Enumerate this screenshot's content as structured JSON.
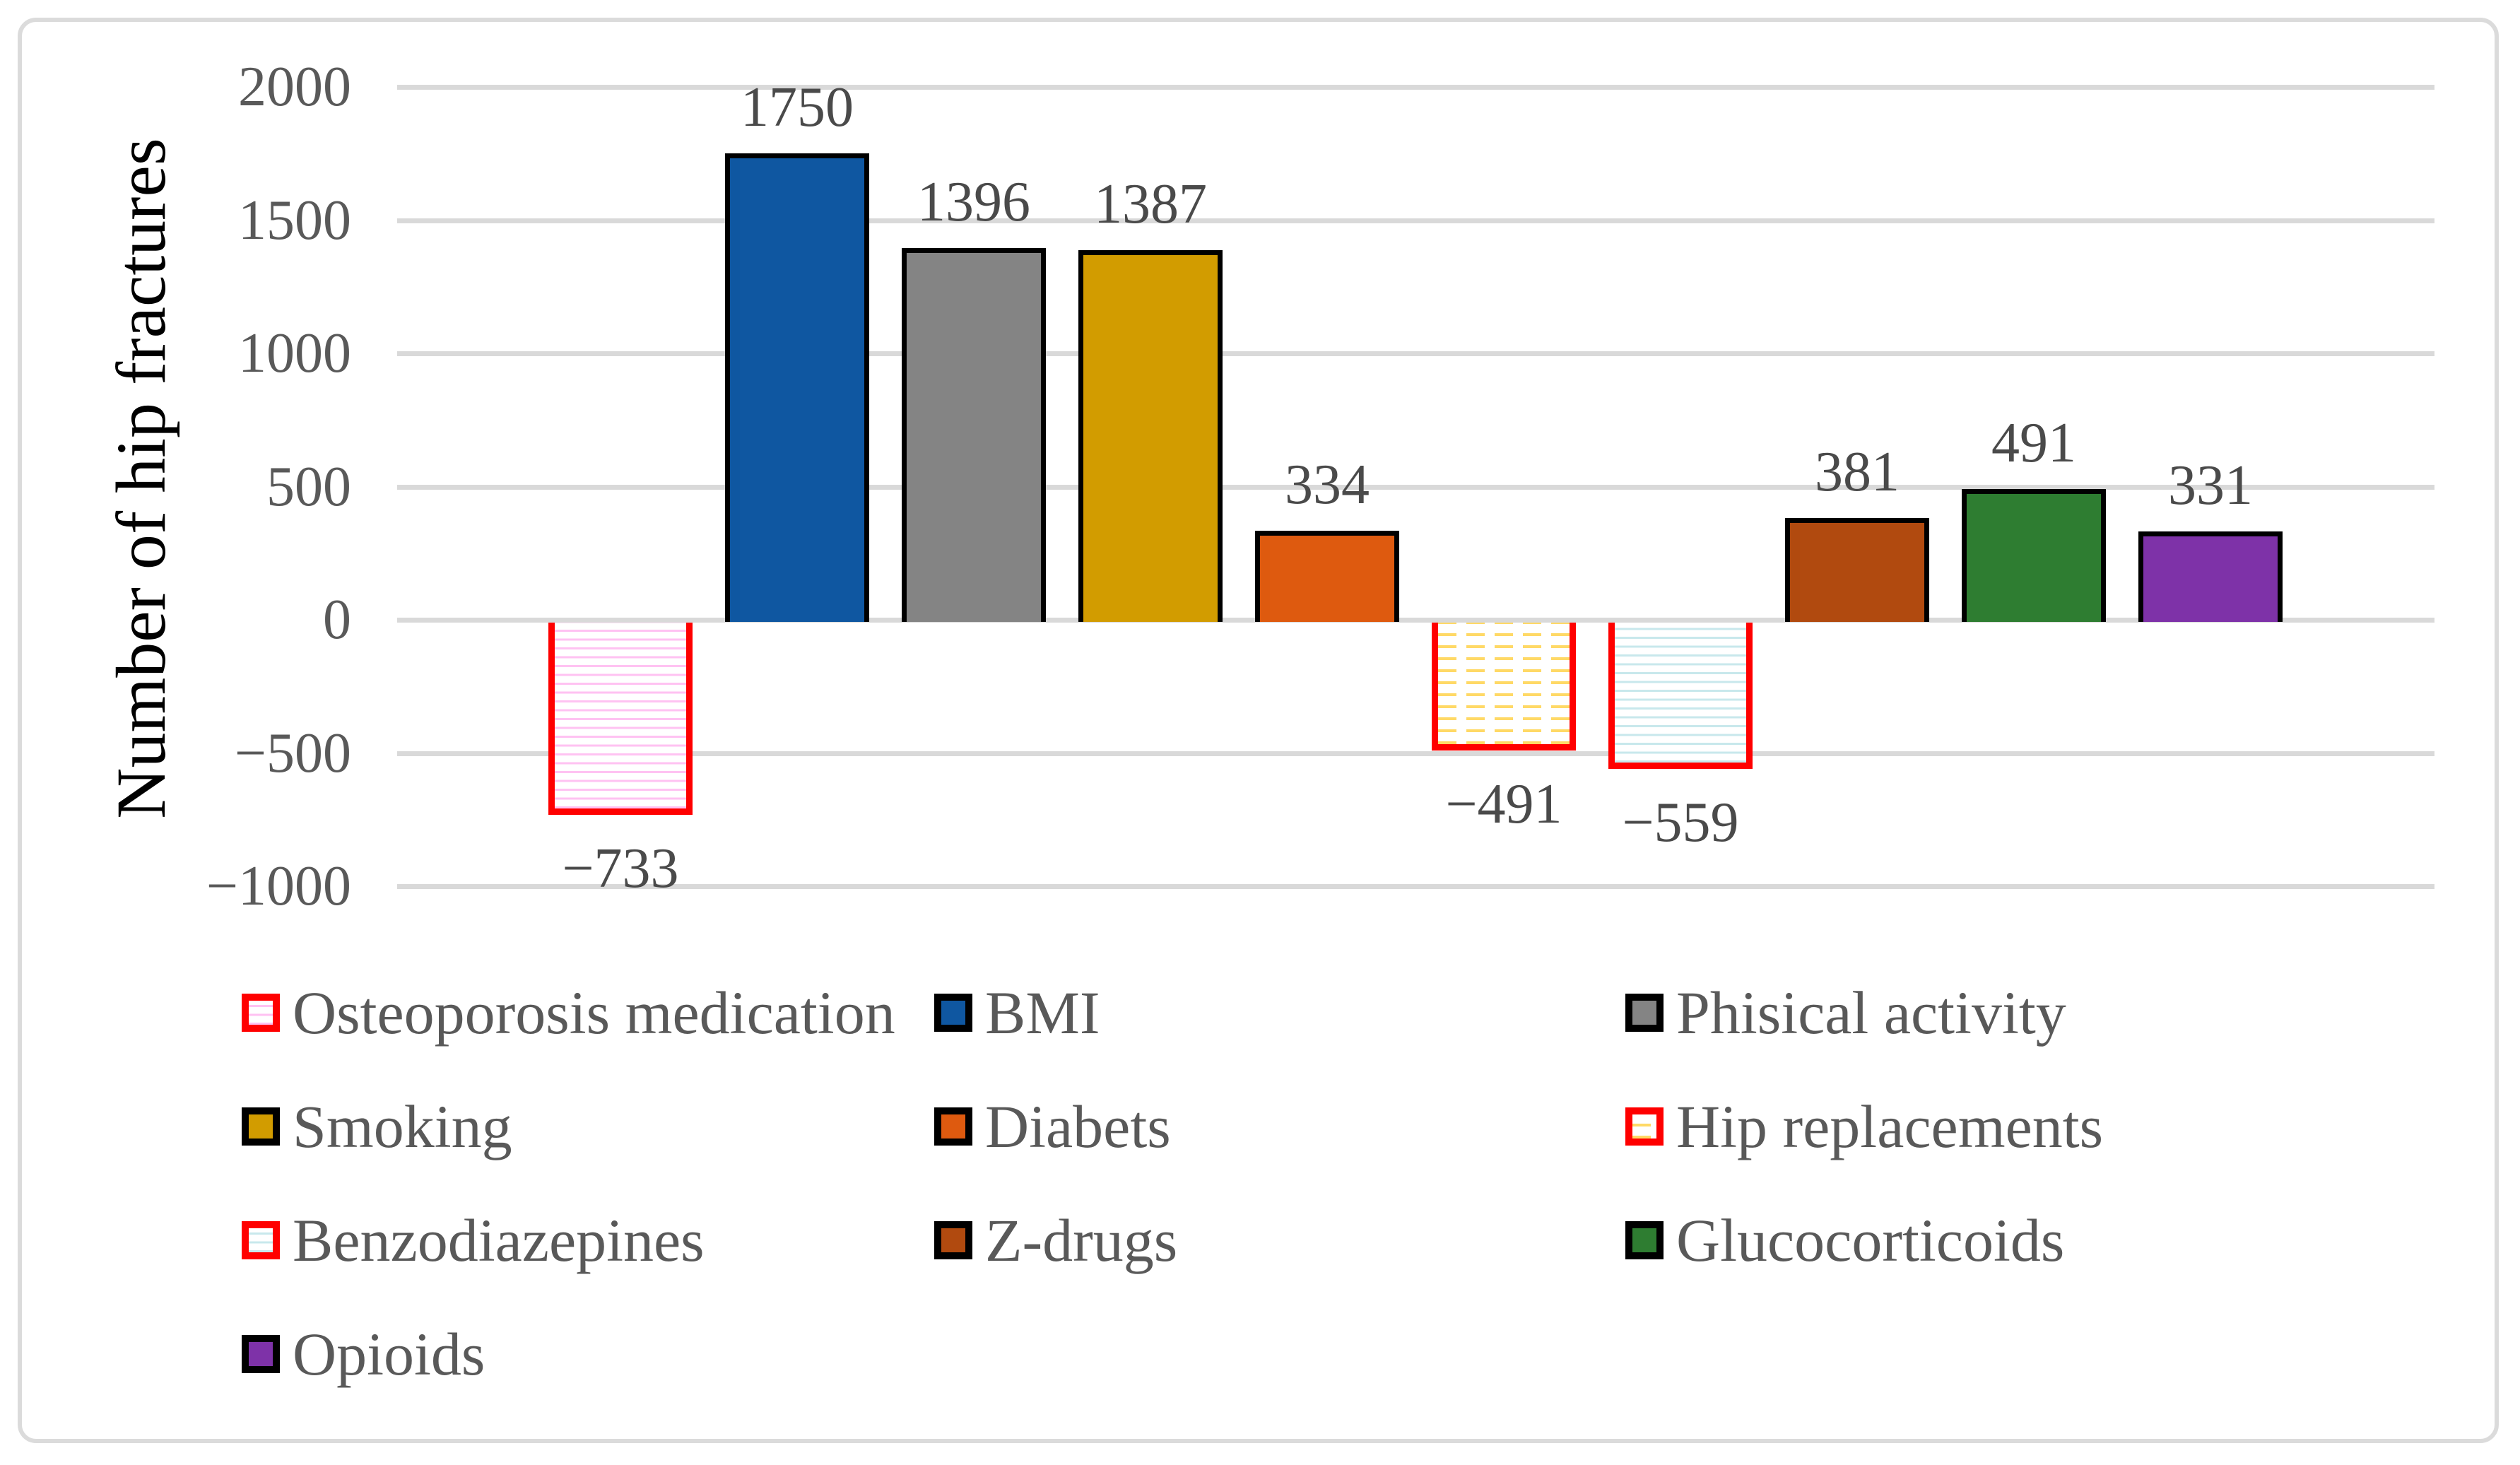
{
  "chart_data": {
    "type": "bar",
    "title": "",
    "xlabel": "",
    "ylabel": "Number of hip fractures",
    "ylim": [
      -1000,
      2000
    ],
    "grid": "horizontal",
    "legend_position": "bottom",
    "yticks": [
      {
        "value": 2000,
        "label": "2000"
      },
      {
        "value": 1500,
        "label": "1500"
      },
      {
        "value": 1000,
        "label": "1000"
      },
      {
        "value": 500,
        "label": "500"
      },
      {
        "value": 0,
        "label": "0"
      },
      {
        "value": -500,
        "label": "−500"
      },
      {
        "value": -1000,
        "label": "−1000"
      }
    ],
    "bars": [
      {
        "category": "Osteoporosis medication",
        "value": -733,
        "label": "−733",
        "fill": "pattern:pink-lines",
        "stroke": "#ff0000"
      },
      {
        "category": "BMI",
        "value": 1750,
        "label": "1750",
        "fill": "#0f57a1",
        "stroke": "#000000"
      },
      {
        "category": "Phisical activity",
        "value": 1396,
        "label": "1396",
        "fill": "#848484",
        "stroke": "#000000"
      },
      {
        "category": "Smoking",
        "value": 1387,
        "label": "1387",
        "fill": "#d29c00",
        "stroke": "#000000"
      },
      {
        "category": "Diabets",
        "value": 334,
        "label": "334",
        "fill": "#de5a0f",
        "stroke": "#000000"
      },
      {
        "category": "Hip replacements",
        "value": -491,
        "label": "−491",
        "fill": "pattern:yellow-dashes",
        "stroke": "#ff0000"
      },
      {
        "category": "Benzodiazepines",
        "value": -559,
        "label": "−559",
        "fill": "pattern:cyan-lines",
        "stroke": "#ff0000"
      },
      {
        "category": "Z-drugs",
        "value": 381,
        "label": "381",
        "fill": "#b14a0f",
        "stroke": "#000000"
      },
      {
        "category": "Glucocorticoids",
        "value": 491,
        "label": "491",
        "fill": "#2e7d31",
        "stroke": "#000000"
      },
      {
        "category": "Opioids",
        "value": 331,
        "label": "331",
        "fill": "#7e32a8",
        "stroke": "#000000"
      }
    ]
  },
  "colors": {
    "gridline": "#d9d9d9",
    "tick_text": "#595959",
    "value_text": "#4a4a4a",
    "legend_text": "#595959",
    "axis_title_text": "#000000",
    "negative_bar_outline": "#ff0000",
    "positive_bar_outline": "#000000",
    "pattern_pink_line": "#ffc2f2",
    "pattern_yellow_dash": "#ffd966",
    "pattern_cyan_line": "#c8e8ec",
    "frame_border": "#dbdbdb"
  }
}
